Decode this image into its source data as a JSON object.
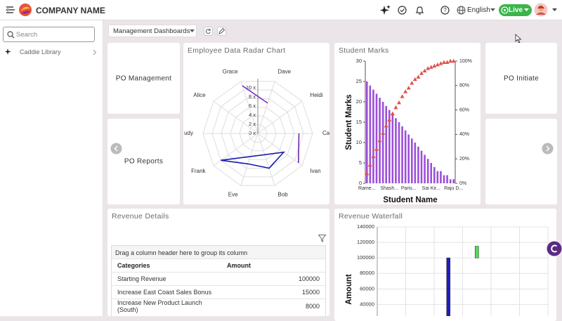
{
  "header": {
    "company_name": "COMPANY NAME",
    "language": "English",
    "status": "Live"
  },
  "sidebar": {
    "search_placeholder": "Search",
    "items": [
      "Caddie Library"
    ]
  },
  "toolbar": {
    "dashboard_select": "Management Dashboards"
  },
  "tiles": [
    "PO Management",
    "PO Reports",
    "PO Initiate"
  ],
  "radar_chart": {
    "type": "radar",
    "title": "Employee Data Radar Chart",
    "categories": [
      "Grace",
      "Dave",
      "Heidi",
      "Ca",
      "Ivan",
      "Bob",
      "Eve",
      "Frank",
      "udy",
      "Alice"
    ],
    "ylim": [
      0,
      12
    ],
    "yticks": [
      {
        "value": 0,
        "label": "0 x"
      },
      {
        "value": 2,
        "label": "2 x"
      },
      {
        "value": 4,
        "label": "4 x"
      },
      {
        "value": 6,
        "label": "6 x"
      },
      {
        "value": 8,
        "label": "8 x"
      },
      {
        "value": 10,
        "label": "10 x"
      }
    ],
    "series": [
      {
        "color": "#7a2bc4",
        "values": [
          11,
          7,
          null,
          null,
          null,
          null,
          null,
          null,
          null,
          null
        ]
      },
      {
        "color": "#6a2aa8",
        "values": [
          null,
          null,
          null,
          9,
          11,
          null,
          null,
          null,
          null,
          null
        ]
      },
      {
        "color": "#3fd43f",
        "dashed": true,
        "values": [
          9,
          null,
          null,
          null,
          null,
          null,
          null,
          null,
          null,
          9
        ]
      },
      {
        "color": "#1a1ab0",
        "closed": true,
        "values": [
          null,
          null,
          null,
          null,
          7,
          8,
          7,
          10,
          null,
          null
        ]
      }
    ]
  },
  "pareto_chart": {
    "type": "pareto",
    "title": "Student Marks",
    "y_label": "Student Marks",
    "x_label": "Student Name",
    "categories": [
      "Rame...",
      null,
      null,
      null,
      null,
      null,
      null,
      "Shash...",
      null,
      null,
      null,
      null,
      null,
      "Paris...",
      null,
      null,
      null,
      null,
      null,
      null,
      "Sai Kir...",
      null,
      null,
      null,
      null,
      null,
      null,
      "Raju D..."
    ],
    "ylim": [
      0,
      30
    ],
    "yticks": [
      0,
      5,
      10,
      15,
      20,
      25,
      30
    ],
    "y2lim": [
      0,
      100
    ],
    "y2ticks": [
      {
        "value": 0,
        "label": "0%"
      },
      {
        "value": 20,
        "label": "20%"
      },
      {
        "value": 40,
        "label": "40%"
      },
      {
        "value": 60,
        "label": "60%"
      },
      {
        "value": 80,
        "label": "80%"
      },
      {
        "value": 100,
        "label": "100%"
      }
    ],
    "series": [
      {
        "type": "bar",
        "color": "#9b4fd8",
        "values": [
          25,
          24,
          23,
          22,
          21,
          20,
          19,
          18,
          17,
          16,
          15,
          14,
          13,
          12,
          11,
          10,
          9,
          8,
          7,
          6,
          5,
          4,
          3,
          3,
          2,
          2,
          1,
          1
        ]
      },
      {
        "type": "line",
        "axis": "y2",
        "color": "#e0504a",
        "values": [
          8,
          15,
          22,
          28,
          35,
          41,
          47,
          52,
          57,
          62,
          66,
          71,
          75,
          78,
          82,
          85,
          87,
          90,
          92,
          94,
          95,
          96,
          97,
          98,
          99,
          99,
          100,
          100
        ]
      }
    ]
  },
  "revenue_table": {
    "title": "Revenue Details",
    "group_hint": "Drag a column header here to group its column",
    "columns": [
      "Categories",
      "Amount"
    ],
    "rows": [
      [
        "Starting Revenue",
        100000
      ],
      [
        "Increase East Coast Sales Bonus",
        15000
      ],
      [
        "Increase New Product Launch (South)",
        8000
      ]
    ]
  },
  "waterfall_chart": {
    "type": "waterfall",
    "title": "Revenue Waterfall",
    "y_label": "Amount",
    "ylim": [
      25000,
      140000
    ],
    "yticks": [
      40000,
      60000,
      80000,
      100000,
      120000,
      140000
    ],
    "grid": true,
    "series": [
      {
        "color": "#1d1dc0",
        "values": [
          null,
          null,
          100000,
          null,
          null,
          null
        ]
      },
      {
        "color": "#4fe04f",
        "values": [
          null,
          null,
          null,
          15000,
          null,
          null
        ]
      }
    ]
  }
}
